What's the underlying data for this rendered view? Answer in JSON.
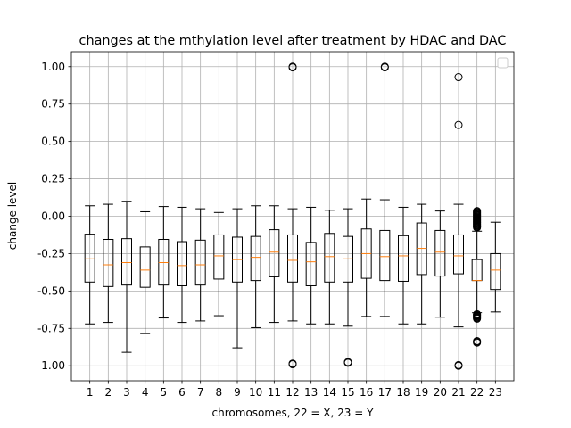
{
  "chart_data": {
    "type": "box",
    "title": "changes at the mthylation level after treatment by HDAC and DAC",
    "xlabel": "chromosomes, 22 = X, 23 = Y",
    "ylabel": "change level",
    "ylim": [
      -1.1,
      1.1
    ],
    "yticks": [
      "-1.00",
      "-0.75",
      "-0.50",
      "-0.25",
      "0.00",
      "0.25",
      "0.50",
      "0.75",
      "1.00"
    ],
    "ytick_values": [
      -1.0,
      -0.75,
      -0.5,
      -0.25,
      0.0,
      0.25,
      0.5,
      0.75,
      1.0
    ],
    "categories": [
      "1",
      "2",
      "3",
      "4",
      "5",
      "6",
      "7",
      "8",
      "9",
      "10",
      "11",
      "12",
      "13",
      "14",
      "15",
      "16",
      "17",
      "18",
      "19",
      "20",
      "21",
      "22",
      "23"
    ],
    "grid": true,
    "legend": "top-right (empty)",
    "colors": {
      "median": "#ff7f0e",
      "box": "#000000",
      "grid": "#b0b0b0"
    },
    "boxes": [
      {
        "q1": -0.44,
        "median": -0.285,
        "q3": -0.12,
        "whislo": -0.72,
        "whishi": 0.07,
        "fliers": []
      },
      {
        "q1": -0.47,
        "median": -0.325,
        "q3": -0.155,
        "whislo": -0.71,
        "whishi": 0.08,
        "fliers": []
      },
      {
        "q1": -0.46,
        "median": -0.31,
        "q3": -0.15,
        "whislo": -0.91,
        "whishi": 0.1,
        "fliers": []
      },
      {
        "q1": -0.475,
        "median": -0.36,
        "q3": -0.205,
        "whislo": -0.785,
        "whishi": 0.03,
        "fliers": []
      },
      {
        "q1": -0.46,
        "median": -0.31,
        "q3": -0.155,
        "whislo": -0.68,
        "whishi": 0.065,
        "fliers": []
      },
      {
        "q1": -0.465,
        "median": -0.33,
        "q3": -0.17,
        "whislo": -0.71,
        "whishi": 0.06,
        "fliers": []
      },
      {
        "q1": -0.46,
        "median": -0.325,
        "q3": -0.16,
        "whislo": -0.7,
        "whishi": 0.05,
        "fliers": []
      },
      {
        "q1": -0.42,
        "median": -0.265,
        "q3": -0.125,
        "whislo": -0.665,
        "whishi": 0.025,
        "fliers": []
      },
      {
        "q1": -0.44,
        "median": -0.29,
        "q3": -0.14,
        "whislo": -0.88,
        "whishi": 0.05,
        "fliers": []
      },
      {
        "q1": -0.43,
        "median": -0.275,
        "q3": -0.135,
        "whislo": -0.745,
        "whishi": 0.07,
        "fliers": []
      },
      {
        "q1": -0.405,
        "median": -0.24,
        "q3": -0.09,
        "whislo": -0.71,
        "whishi": 0.07,
        "fliers": []
      },
      {
        "q1": -0.44,
        "median": -0.295,
        "q3": -0.125,
        "whislo": -0.7,
        "whishi": 0.05,
        "fliers": [
          1.0,
          0.995,
          -0.985,
          -0.99
        ]
      },
      {
        "q1": -0.465,
        "median": -0.305,
        "q3": -0.175,
        "whislo": -0.72,
        "whishi": 0.06,
        "fliers": []
      },
      {
        "q1": -0.44,
        "median": -0.27,
        "q3": -0.115,
        "whislo": -0.72,
        "whishi": 0.04,
        "fliers": []
      },
      {
        "q1": -0.44,
        "median": -0.285,
        "q3": -0.135,
        "whislo": -0.735,
        "whishi": 0.05,
        "fliers": [
          -0.975,
          -0.98
        ]
      },
      {
        "q1": -0.415,
        "median": -0.25,
        "q3": -0.085,
        "whislo": -0.67,
        "whishi": 0.115,
        "fliers": []
      },
      {
        "q1": -0.43,
        "median": -0.27,
        "q3": -0.095,
        "whislo": -0.67,
        "whishi": 0.11,
        "fliers": [
          1.0,
          0.995
        ]
      },
      {
        "q1": -0.435,
        "median": -0.265,
        "q3": -0.13,
        "whislo": -0.72,
        "whishi": 0.06,
        "fliers": []
      },
      {
        "q1": -0.39,
        "median": -0.215,
        "q3": -0.045,
        "whislo": -0.72,
        "whishi": 0.08,
        "fliers": []
      },
      {
        "q1": -0.4,
        "median": -0.24,
        "q3": -0.095,
        "whislo": -0.675,
        "whishi": 0.035,
        "fliers": []
      },
      {
        "q1": -0.385,
        "median": -0.265,
        "q3": -0.125,
        "whislo": -0.74,
        "whishi": 0.08,
        "fliers": [
          0.93,
          0.61,
          -0.995,
          -1.0
        ]
      },
      {
        "q1": -0.43,
        "median": -0.43,
        "q3": -0.29,
        "whislo": -0.645,
        "whishi": -0.1,
        "fliers": [
          0.035,
          0.03,
          0.025,
          0.02,
          0.015,
          0.01,
          0.005,
          0.0,
          -0.005,
          -0.01,
          -0.015,
          -0.02,
          -0.025,
          -0.03,
          -0.035,
          -0.04,
          -0.045,
          -0.05,
          -0.055,
          -0.06,
          -0.065,
          -0.07,
          -0.075,
          -0.655,
          -0.66,
          -0.665,
          -0.67,
          -0.675,
          -0.68,
          -0.685,
          -0.835,
          -0.84,
          -0.845
        ]
      },
      {
        "q1": -0.49,
        "median": -0.36,
        "q3": -0.25,
        "whislo": -0.64,
        "whishi": -0.04,
        "fliers": []
      }
    ]
  }
}
